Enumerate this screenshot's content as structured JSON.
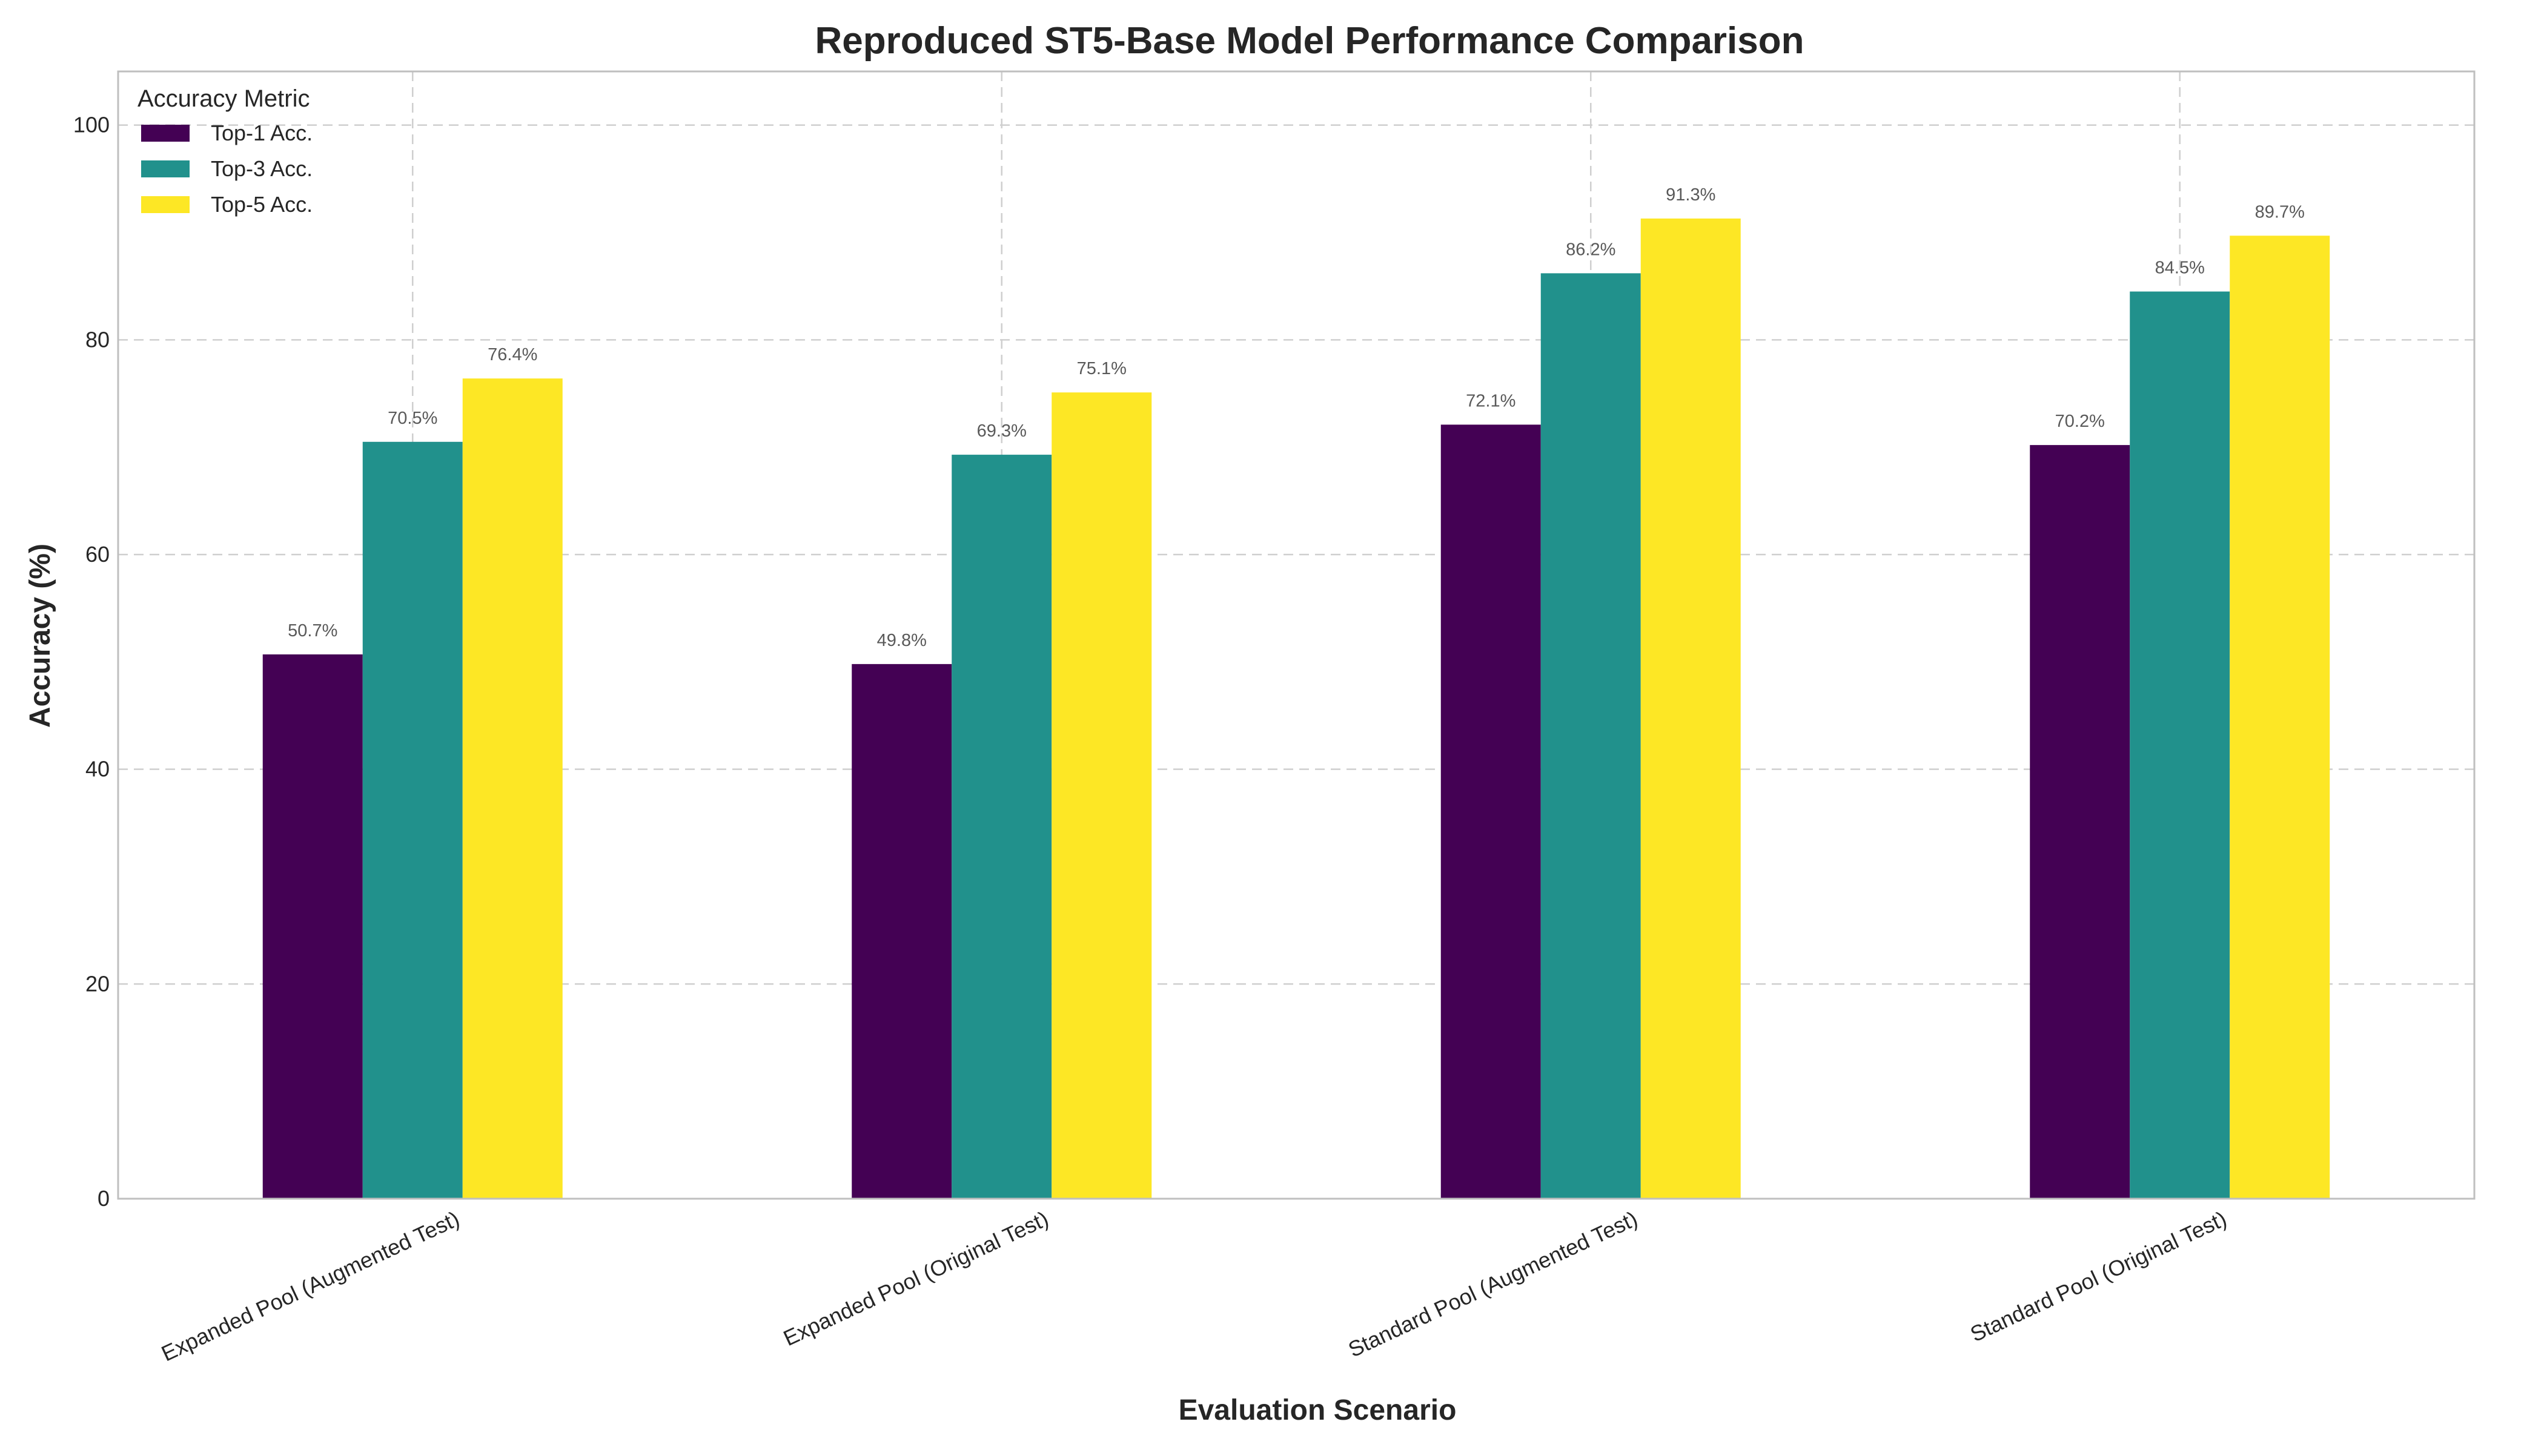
{
  "chart_data": {
    "type": "bar",
    "title": "Reproduced ST5-Base Model Performance Comparison",
    "xlabel": "Evaluation Scenario",
    "ylabel": "Accuracy (%)",
    "ylim": [
      0,
      105
    ],
    "yticks": [
      0,
      20,
      40,
      60,
      80,
      100
    ],
    "ytick_labels": [
      "0",
      "20",
      "40",
      "60",
      "80",
      "100"
    ],
    "grid": true,
    "categories": [
      "Expanded Pool (Augmented Test)",
      "Expanded Pool (Original Test)",
      "Standard Pool (Augmented Test)",
      "Standard Pool (Original Test)"
    ],
    "series": [
      {
        "name": "Top-1 Acc.",
        "color": "#440154",
        "values": [
          50.7,
          49.8,
          72.1,
          70.2
        ],
        "labels": [
          "50.7%",
          "49.8%",
          "72.1%",
          "70.2%"
        ]
      },
      {
        "name": "Top-3 Acc.",
        "color": "#21918c",
        "values": [
          70.5,
          69.3,
          86.2,
          84.5
        ],
        "labels": [
          "70.5%",
          "69.3%",
          "86.2%",
          "84.5%"
        ]
      },
      {
        "name": "Top-5 Acc.",
        "color": "#fde725",
        "values": [
          76.4,
          75.1,
          91.3,
          89.7
        ],
        "labels": [
          "76.4%",
          "75.1%",
          "91.3%",
          "89.7%"
        ]
      }
    ],
    "legend": {
      "title": "Accuracy Metric",
      "position": "top-left"
    }
  }
}
